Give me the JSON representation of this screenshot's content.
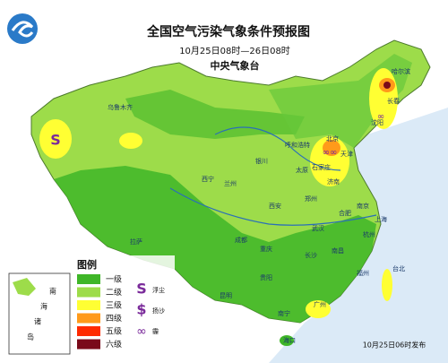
{
  "header": {
    "title": "全国空气污染气象条件预报图",
    "period": "10月25日08时—26日08时",
    "issuer": "中央气象台"
  },
  "legend": {
    "title": "图例",
    "levels": [
      {
        "label": "一级",
        "color": "#3fb628"
      },
      {
        "label": "二级",
        "color": "#9ddc4a"
      },
      {
        "label": "三级",
        "color": "#ffff33"
      },
      {
        "label": "四级",
        "color": "#ff9a1a"
      },
      {
        "label": "五级",
        "color": "#ff2a00"
      },
      {
        "label": "六级",
        "color": "#7a0a1a"
      }
    ],
    "symbols": [
      "浮尘",
      "扬沙",
      "霾"
    ]
  },
  "inset": {
    "label": [
      "南",
      "海",
      "诸",
      "岛"
    ]
  },
  "cities": [
    "乌鲁木齐",
    "哈尔滨",
    "长春",
    "沈阳",
    "呼和浩特",
    "北京",
    "天津",
    "石家庄",
    "太原",
    "济南",
    "银川",
    "兰州",
    "西宁",
    "西安",
    "郑州",
    "合肥",
    "南京",
    "上海",
    "武汉",
    "成都",
    "重庆",
    "拉萨",
    "长沙",
    "南昌",
    "杭州",
    "福州",
    "贵阳",
    "昆明",
    "南宁",
    "广州",
    "台北",
    "海口"
  ],
  "footer": "10月25日06时发布"
}
